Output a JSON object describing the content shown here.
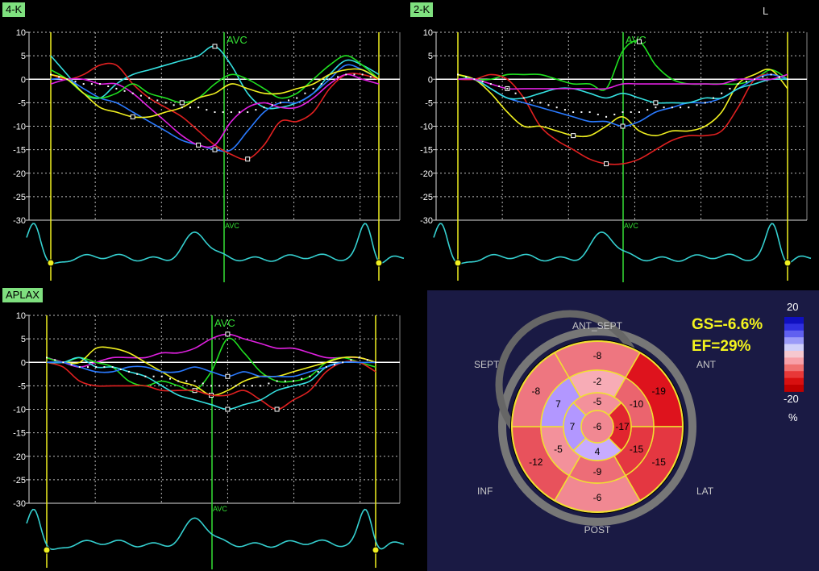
{
  "corner_label": "L",
  "summary": {
    "gs": "GS=-6.6%",
    "ef": "EF=29%"
  },
  "legend": {
    "max": "20",
    "min": "-20",
    "unit": "%"
  },
  "orientation": {
    "ant_sept": "ANT_SEPT",
    "sept": "SEPT",
    "ant": "ANT",
    "inf": "INF",
    "lat": "LAT",
    "post": "POST"
  },
  "bullseye": {
    "basal": [
      {
        "label": "-8",
        "value": -8
      },
      {
        "label": "-19",
        "value": -19
      },
      {
        "label": "-15",
        "value": -15
      },
      {
        "label": "-6",
        "value": -6
      },
      {
        "label": "-12",
        "value": -12
      },
      {
        "label": "-8",
        "value": -8
      }
    ],
    "mid": [
      {
        "label": "-2",
        "value": -2
      },
      {
        "label": "-10",
        "value": -10
      },
      {
        "label": "-15",
        "value": -15
      },
      {
        "label": "-9",
        "value": -9
      },
      {
        "label": "-5",
        "value": -5
      },
      {
        "label": "7",
        "value": 7
      }
    ],
    "apical": [
      {
        "label": "-5",
        "value": -5
      },
      {
        "label": "-17",
        "value": -17
      },
      {
        "label": "4",
        "value": 4
      },
      {
        "label": "7",
        "value": 7
      }
    ],
    "apex": {
      "label": "-6",
      "value": -6
    }
  },
  "chart_data": [
    {
      "type": "line",
      "title": "4-K",
      "avc_label": "AVC",
      "ylim": [
        -30,
        10
      ],
      "yticks": [
        "10",
        "5",
        "0",
        "-5",
        "-10",
        "-15",
        "-20",
        "-25",
        "-30"
      ],
      "x": [
        0,
        5,
        10,
        15,
        20,
        25,
        30,
        35,
        40,
        45,
        50,
        55,
        60,
        65,
        70,
        75,
        80,
        85,
        90,
        95,
        100
      ],
      "avc_x": 50,
      "series": [
        {
          "color": "#35e0e0",
          "values": [
            5,
            1,
            -3,
            -4,
            -1,
            1,
            2,
            3,
            4,
            5,
            7,
            3,
            -3,
            -6,
            -6,
            -5,
            -3,
            1,
            4,
            3,
            1
          ]
        },
        {
          "color": "#2a7aff",
          "values": [
            0,
            0,
            -2,
            -4,
            -5,
            -7,
            -9,
            -11,
            -13,
            -14,
            -15,
            -15,
            -11,
            -7,
            -5,
            -5,
            -3,
            0,
            3,
            2,
            0
          ]
        },
        {
          "color": "#e02020",
          "values": [
            1,
            0,
            1,
            3,
            3,
            -1,
            -4,
            -6,
            -8,
            -11,
            -14,
            -16,
            -17,
            -14,
            -9,
            -9,
            -7,
            -2,
            1,
            1,
            0
          ]
        },
        {
          "color": "#e020e0",
          "values": [
            -1,
            0,
            0,
            -1,
            -1,
            -3,
            -6,
            -9,
            -12,
            -14,
            -14,
            -9,
            -6,
            -5,
            -6,
            -6,
            -4,
            -1,
            1,
            0,
            -1
          ]
        },
        {
          "color": "#20e020",
          "values": [
            2,
            0,
            -3,
            -4,
            -3,
            -1,
            -3,
            -4,
            -5,
            -4,
            -1,
            1,
            0,
            -2,
            -4,
            -3,
            0,
            3,
            5,
            3,
            0
          ]
        },
        {
          "color": "#f0f020",
          "values": [
            1,
            0,
            -3,
            -6,
            -7,
            -8,
            -8,
            -7,
            -6,
            -4,
            -3,
            -1,
            -2,
            -3,
            -3,
            -2,
            -1,
            1,
            2,
            2,
            0
          ]
        },
        {
          "color": "#ffffff",
          "dotted": true,
          "values": [
            1,
            0,
            -1,
            -1,
            -2,
            -3,
            -4,
            -5,
            -6,
            -6,
            -7,
            -7,
            -7,
            -6,
            -5,
            -4,
            -2,
            0,
            1,
            1,
            0
          ]
        }
      ]
    },
    {
      "type": "line",
      "title": "2-K",
      "avc_label": "AVC",
      "ylim": [
        -30,
        10
      ],
      "yticks": [
        "10",
        "5",
        "0",
        "-5",
        "-10",
        "-15",
        "-20",
        "-25",
        "-30"
      ],
      "x": [
        0,
        5,
        10,
        15,
        20,
        25,
        30,
        35,
        40,
        45,
        50,
        55,
        60,
        65,
        70,
        75,
        80,
        85,
        90,
        95,
        100
      ],
      "avc_x": 50,
      "series": [
        {
          "color": "#20e020",
          "values": [
            1,
            0,
            0,
            1,
            1,
            1,
            0,
            -1,
            -1,
            -2,
            6,
            8,
            3,
            0,
            -1,
            -1,
            -1,
            -1,
            0,
            2,
            0
          ]
        },
        {
          "color": "#e02020",
          "values": [
            0,
            0,
            1,
            0,
            -4,
            -10,
            -13,
            -15,
            -17,
            -18,
            -18,
            -17,
            -15,
            -13,
            -12,
            -12,
            -11,
            -6,
            0,
            1,
            0
          ]
        },
        {
          "color": "#f0f020",
          "values": [
            1,
            0,
            -3,
            -7,
            -10,
            -10,
            -11,
            -12,
            -12,
            -10,
            -8,
            -11,
            -12,
            -11,
            -11,
            -10,
            -7,
            -1,
            1,
            2,
            -2
          ]
        },
        {
          "color": "#2a7aff",
          "values": [
            0,
            0,
            -2,
            -4,
            -5,
            -6,
            -7,
            -8,
            -9,
            -9,
            -10,
            -9,
            -7,
            -6,
            -5,
            -5,
            -4,
            -2,
            0,
            1,
            0
          ]
        },
        {
          "color": "#35e0e0",
          "values": [
            0,
            0,
            -2,
            -4,
            -4,
            -3,
            -2,
            -2,
            -3,
            -4,
            -3,
            -4,
            -5,
            -5,
            -5,
            -4,
            -4,
            -2,
            -1,
            0,
            0
          ]
        },
        {
          "color": "#e020e0",
          "values": [
            0,
            0,
            -1,
            -2,
            -2,
            -2,
            -2,
            -2,
            -2,
            -2,
            -1,
            -1,
            -1,
            -1,
            -1,
            -1,
            -1,
            0,
            0,
            0,
            1
          ]
        },
        {
          "color": "#ffffff",
          "dotted": true,
          "values": [
            1,
            0,
            -1,
            -2,
            -4,
            -5,
            -6,
            -7,
            -7,
            -8,
            -7,
            -7,
            -6,
            -6,
            -6,
            -5,
            -3,
            -1,
            0,
            1,
            0
          ]
        }
      ]
    },
    {
      "type": "line",
      "title": "APLAX",
      "avc_label": "AVC",
      "ylim": [
        -30,
        10
      ],
      "yticks": [
        "10",
        "5",
        "0",
        "-5",
        "-10",
        "-15",
        "-20",
        "-25",
        "-30"
      ],
      "x": [
        0,
        5,
        10,
        15,
        20,
        25,
        30,
        35,
        40,
        45,
        50,
        55,
        60,
        65,
        70,
        75,
        80,
        85,
        90,
        95,
        100
      ],
      "avc_x": 50,
      "series": [
        {
          "color": "#e020e0",
          "values": [
            1,
            0,
            -1,
            0,
            1,
            1,
            1,
            2,
            2,
            3,
            5,
            6,
            5,
            4,
            3,
            3,
            2,
            1,
            1,
            1,
            0
          ]
        },
        {
          "color": "#20e020",
          "values": [
            1,
            0,
            1,
            0,
            -1,
            -4,
            -5,
            -4,
            -5,
            -6,
            -2,
            5,
            2,
            -2,
            -4,
            -4,
            -3,
            0,
            1,
            0,
            -1
          ]
        },
        {
          "color": "#f0f020",
          "values": [
            0,
            0,
            0,
            3,
            3,
            2,
            0,
            -2,
            -4,
            -5,
            -7,
            -6,
            -4,
            -3,
            -3,
            -2,
            -1,
            0,
            1,
            1,
            0
          ]
        },
        {
          "color": "#e02020",
          "values": [
            0,
            -1,
            -4,
            -5,
            -5,
            -5,
            -5,
            -6,
            -6,
            -6,
            -7,
            -7,
            -6,
            -8,
            -10,
            -8,
            -6,
            -2,
            0,
            0,
            -2
          ]
        },
        {
          "color": "#35e0e0",
          "values": [
            0,
            0,
            1,
            -1,
            -1,
            -2,
            -3,
            -5,
            -7,
            -8,
            -9,
            -10,
            -9,
            -8,
            -6,
            -5,
            -4,
            -1,
            0,
            0,
            0
          ]
        },
        {
          "color": "#2a7aff",
          "values": [
            0,
            0,
            -1,
            -2,
            -2,
            -1,
            -1,
            -2,
            -2,
            -1,
            -2,
            -3,
            -2,
            -3,
            -3,
            -3,
            -2,
            -1,
            0,
            0,
            0
          ]
        },
        {
          "color": "#ffffff",
          "dotted": true,
          "values": [
            1,
            0,
            -1,
            -1,
            -1,
            -2,
            -3,
            -3,
            -4,
            -4,
            -5,
            -5,
            -5,
            -5,
            -4,
            -4,
            -3,
            -1,
            0,
            1,
            0
          ]
        }
      ]
    }
  ]
}
